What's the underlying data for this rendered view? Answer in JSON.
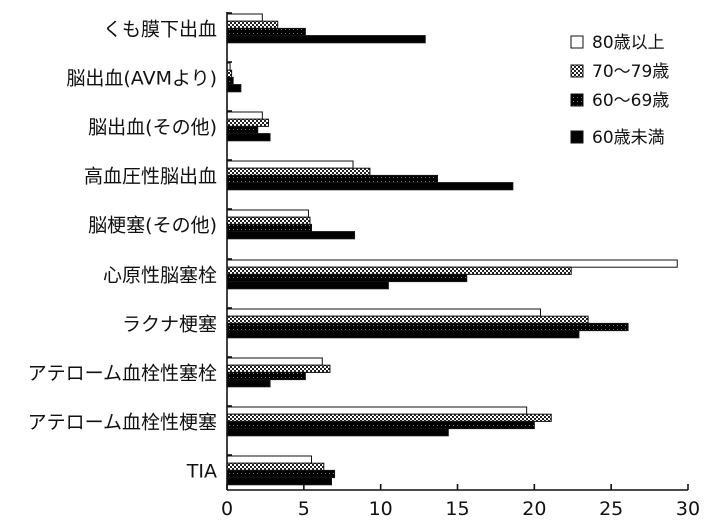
{
  "chart_data": {
    "type": "bar",
    "orientation": "horizontal",
    "title": "",
    "xlabel": "",
    "ylabel": "",
    "xlim": [
      0,
      30
    ],
    "xticks": [
      0,
      5,
      10,
      15,
      20,
      25,
      30
    ],
    "grid": false,
    "legend_position": "top-right",
    "categories": [
      "くも膜下出血",
      "脳出血(AVMより)",
      "脳出血(その他)",
      "高血圧性脳出血",
      "脳梗塞(その他)",
      "心原性脳塞栓",
      "ラクナ梗塞",
      "アテローム血栓性塞栓",
      "アテローム血栓性梗塞",
      "TIA"
    ],
    "series": [
      {
        "name": "80歳以上",
        "fill": "#ffffff",
        "values": [
          2.3,
          0.2,
          2.3,
          8.2,
          5.3,
          29.3,
          20.4,
          6.2,
          19.5,
          5.5
        ]
      },
      {
        "name": "70〜79歳",
        "fill": "#9a9a9a",
        "values": [
          3.3,
          0.3,
          2.7,
          9.3,
          5.4,
          22.4,
          23.5,
          6.7,
          21.1,
          6.3
        ]
      },
      {
        "name": "60〜69歳",
        "fill": "#1a1a1a",
        "values": [
          5.1,
          0.4,
          2.0,
          13.7,
          5.5,
          15.6,
          26.1,
          5.1,
          20.0,
          7.0
        ]
      },
      {
        "name": "60歳未満",
        "fill": "#000000",
        "values": [
          12.9,
          0.9,
          2.8,
          18.6,
          8.3,
          10.5,
          22.9,
          2.8,
          14.4,
          6.8
        ]
      }
    ]
  }
}
